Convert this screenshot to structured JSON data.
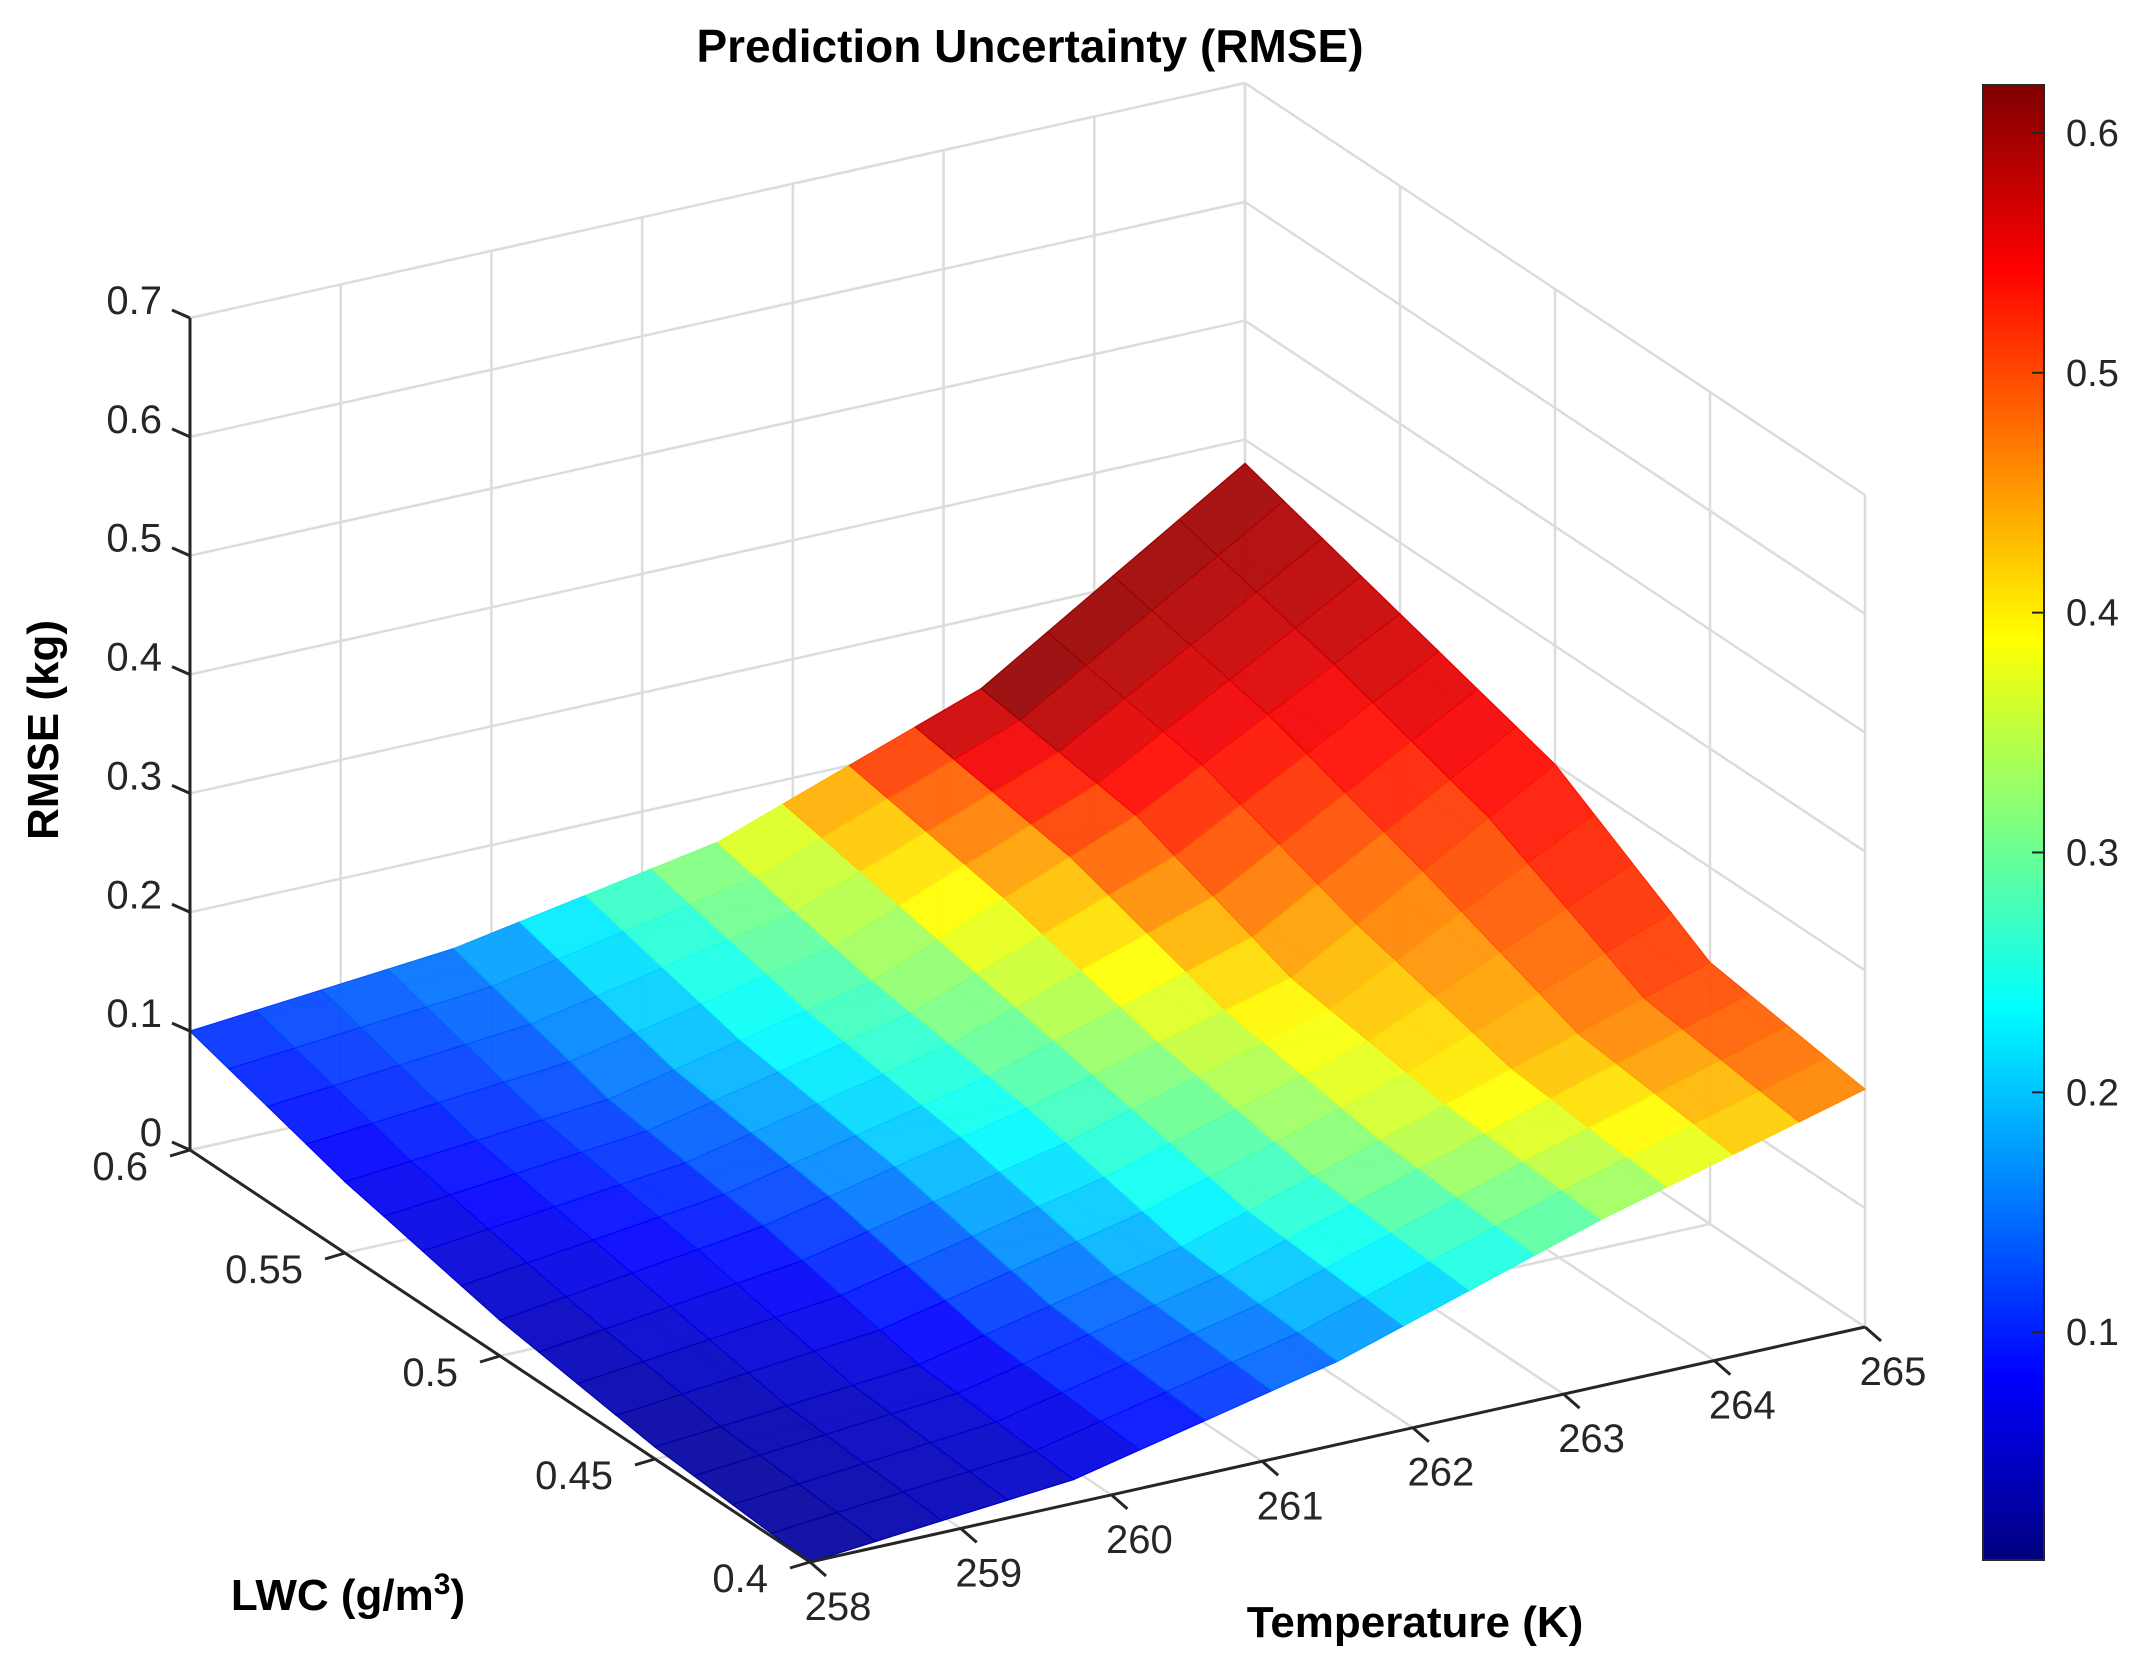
{
  "chart_data": {
    "type": "surface",
    "title": "Prediction Uncertainty (RMSE)",
    "xlabel": "Temperature (K)",
    "ylabel_prefix": "LWC (g/m",
    "ylabel_sup": "3",
    "ylabel_suffix": ")",
    "zlabel": "RMSE (kg)",
    "xlim": [
      258,
      265
    ],
    "ylim": [
      0.4,
      0.6
    ],
    "zlim": [
      0,
      0.7
    ],
    "x_ticks": [
      "258",
      "259",
      "260",
      "261",
      "262",
      "263",
      "264",
      "265"
    ],
    "y_ticks": [
      "0.4",
      "0.45",
      "0.5",
      "0.55",
      "0.6"
    ],
    "z_ticks": [
      "0",
      "0.1",
      "0.2",
      "0.3",
      "0.4",
      "0.5",
      "0.6",
      "0.7"
    ],
    "surface": {
      "x": [
        258,
        259.75,
        261.5,
        263.25,
        265
      ],
      "y": [
        0.4,
        0.45,
        0.5,
        0.55,
        0.6
      ],
      "z": [
        [
          0.0,
          0.02,
          0.07,
          0.14,
          0.2
        ],
        [
          0.01,
          0.03,
          0.08,
          0.15,
          0.22
        ],
        [
          0.03,
          0.06,
          0.11,
          0.17,
          0.3
        ],
        [
          0.06,
          0.08,
          0.13,
          0.22,
          0.34
        ],
        [
          0.1,
          0.12,
          0.16,
          0.24,
          0.38
        ]
      ],
      "color": [
        [
          0.02,
          0.05,
          0.15,
          0.3,
          0.48
        ],
        [
          0.02,
          0.06,
          0.2,
          0.38,
          0.52
        ],
        [
          0.04,
          0.1,
          0.26,
          0.42,
          0.55
        ],
        [
          0.07,
          0.13,
          0.3,
          0.52,
          0.58
        ],
        [
          0.11,
          0.16,
          0.34,
          0.62,
          0.6
        ]
      ]
    },
    "colorbar": {
      "range": [
        0.005,
        0.62
      ],
      "ticks": [
        "0.1",
        "0.2",
        "0.3",
        "0.4",
        "0.5",
        "0.6"
      ],
      "colormap": "jet",
      "colors": [
        "#00007f",
        "#0000ff",
        "#00ffff",
        "#ffff00",
        "#ff0000",
        "#7f0000"
      ]
    }
  }
}
